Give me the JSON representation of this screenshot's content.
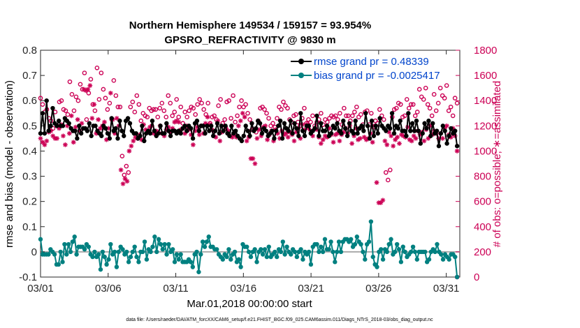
{
  "chart_data": {
    "type": "line",
    "title_line1": "Northern Hemisphere 149534 / 159157 = 93.954%",
    "title_line2": "GPSRO_REFRACTIVITY @ 9830 m",
    "xlabel": "Mar.01,2018 00:00:00 start",
    "ylabel_left": "rmse and bias (model - observation)",
    "ylabel_right": "# of obs: o=possible; ∗=assimilated",
    "x_ticks": [
      "03/01",
      "03/06",
      "03/11",
      "03/16",
      "03/21",
      "03/26",
      "03/31"
    ],
    "x_tick_days": [
      0,
      5,
      10,
      15,
      20,
      25,
      30
    ],
    "xlim": [
      0,
      31
    ],
    "ylim_left": [
      -0.1,
      0.8
    ],
    "ylim_right": [
      0,
      1800
    ],
    "y_ticks_left": [
      "-0.1",
      "0",
      "0.1",
      "0.2",
      "0.3",
      "0.4",
      "0.5",
      "0.6",
      "0.7",
      "0.8"
    ],
    "y_ticks_right": [
      "0",
      "200",
      "400",
      "600",
      "800",
      "1000",
      "1200",
      "1400",
      "1600",
      "1800"
    ],
    "colors": {
      "rmse": "#000000",
      "bias": "#008080",
      "obs": "#cc0055",
      "legend_text": "#0044cc",
      "zero_line": "#aaaaaa"
    },
    "series": [
      {
        "name": "rmse",
        "legend": "rmse grand pr = 0.48339",
        "axis": "left",
        "values": [
          0.47,
          0.55,
          0.47,
          0.6,
          0.48,
          0.5,
          0.57,
          0.51,
          0.5,
          0.52,
          0.5,
          0.5,
          0.53,
          0.52,
          0.51,
          0.49,
          0.48,
          0.48,
          0.45,
          0.5,
          0.47,
          0.49,
          0.49,
          0.48,
          0.51,
          0.46,
          0.5,
          0.5,
          0.48,
          0.47,
          0.46,
          0.5,
          0.49,
          0.47,
          0.45,
          0.53,
          0.48,
          0.49,
          0.45,
          0.52,
          0.48,
          0.46,
          0.52,
          0.53,
          0.51,
          0.48,
          0.47,
          0.47,
          0.45,
          0.46,
          0.5,
          0.44,
          0.47,
          0.48,
          0.47,
          0.52,
          0.48,
          0.46,
          0.47,
          0.5,
          0.47,
          0.47,
          0.51,
          0.48,
          0.46,
          0.48,
          0.48,
          0.47,
          0.48,
          0.47,
          0.49,
          0.5,
          0.48,
          0.5,
          0.49,
          0.45,
          0.51,
          0.52,
          0.48,
          0.5,
          0.5,
          0.47,
          0.5,
          0.48,
          0.5,
          0.46,
          0.48,
          0.51,
          0.47,
          0.5,
          0.48,
          0.5,
          0.47,
          0.46,
          0.5,
          0.47,
          0.48,
          0.46,
          0.45,
          0.44,
          0.46,
          0.5,
          0.48,
          0.46,
          0.51,
          0.48,
          0.49,
          0.52,
          0.51,
          0.47,
          0.49,
          0.48,
          0.46,
          0.47,
          0.48,
          0.45,
          0.48,
          0.5,
          0.52,
          0.45,
          0.51,
          0.49,
          0.48,
          0.52,
          0.47,
          0.51,
          0.49,
          0.46,
          0.55,
          0.48,
          0.46,
          0.5,
          0.5,
          0.47,
          0.48,
          0.49,
          0.54,
          0.46,
          0.51,
          0.48,
          0.48,
          0.5,
          0.46,
          0.47,
          0.5,
          0.49,
          0.51,
          0.48,
          0.47,
          0.52,
          0.49,
          0.46,
          0.51,
          0.48,
          0.47,
          0.52,
          0.47,
          0.49,
          0.5,
          0.48,
          0.55,
          0.5,
          0.45,
          0.52,
          0.46,
          0.5,
          0.47,
          0.53,
          0.5,
          0.49,
          0.48,
          0.5,
          0.49,
          0.55,
          0.47,
          0.5,
          0.49,
          0.52,
          0.48,
          0.48,
          0.46,
          0.55,
          0.48,
          0.51,
          0.48,
          0.52,
          0.48,
          0.43,
          0.47,
          0.51,
          0.49,
          0.52,
          0.46,
          0.51,
          0.47,
          0.48,
          0.42,
          0.47,
          0.5,
          0.48,
          0.43,
          0.46,
          0.49,
          0.47,
          0.48,
          0.42
        ]
      },
      {
        "name": "bias",
        "legend": "bias grand pr = -0.0025417",
        "axis": "left",
        "values": [
          0.05,
          -0.01,
          -0.01,
          -0.01,
          -0.01,
          0.01,
          0.0,
          -0.01,
          -0.05,
          -0.05,
          0.0,
          -0.04,
          0.03,
          -0.01,
          0.03,
          0.0,
          0.04,
          0.06,
          -0.01,
          0.02,
          0.02,
          0.02,
          0.01,
          0.03,
          0.02,
          -0.01,
          -0.02,
          0.0,
          -0.02,
          -0.01,
          -0.07,
          0.0,
          -0.02,
          -0.05,
          -0.03,
          0.03,
          -0.01,
          0.0,
          -0.06,
          0.0,
          0.02,
          0.01,
          -0.01,
          0.0,
          -0.04,
          -0.02,
          0.0,
          0.02,
          -0.02,
          -0.04,
          0.0,
          0.0,
          0.04,
          -0.03,
          0.01,
          0.0,
          0.02,
          0.06,
          0.0,
          0.05,
          0.03,
          0.01,
          0.03,
          -0.01,
          0.03,
          0.0,
          0.01,
          -0.04,
          -0.01,
          -0.03,
          -0.01,
          -0.04,
          -0.04,
          -0.04,
          -0.03,
          -0.04,
          -0.06,
          -0.01,
          0.0,
          -0.08,
          -0.01,
          0.04,
          0.02,
          0.04,
          0.06,
          0.02,
          0.02,
          0.01,
          0.01,
          -0.01,
          -0.02,
          -0.03,
          -0.01,
          -0.02,
          0.01,
          -0.03,
          -0.01,
          0.0,
          -0.04,
          -0.03,
          -0.06,
          0.03,
          0.02,
          0.02,
          0.0,
          -0.02,
          0.0,
          0.01,
          -0.04,
          0.0,
          0.01,
          -0.01,
          0.01,
          -0.02,
          0.02,
          -0.02,
          -0.01,
          0.0,
          -0.02,
          0.01,
          0.0,
          0.04,
          -0.01,
          0.02,
          0.0,
          -0.01,
          0.01,
          0.0,
          -0.02,
          0.0,
          0.01,
          -0.03,
          0.0,
          -0.01,
          0.0,
          -0.05,
          0.02,
          0.03,
          0.03,
          0.0,
          0.02,
          0.0,
          0.05,
          0.01,
          0.01,
          0.04,
          0.0,
          -0.04,
          0.0,
          0.04,
          0.0,
          0.04,
          0.05,
          0.05,
          0.04,
          0.05,
          0.02,
          0.03,
          0.06,
          0.04,
          0.03,
          0.0,
          -0.03,
          0.03,
          0.04,
          0.12,
          -0.02,
          -0.05,
          -0.06,
          0.0,
          0.01,
          -0.03,
          0.01,
          0.0,
          0.03,
          0.05,
          -0.01,
          0.0,
          0.03,
          0.01,
          -0.04,
          0.02,
          0.0,
          -0.02,
          -0.01,
          0.0,
          0.02,
          0.0,
          -0.03,
          0.0,
          0.0,
          0.0,
          0.0,
          -0.04,
          -0.03,
          0.0,
          0.01,
          0.0,
          0.03,
          0.0,
          -0.01,
          -0.03,
          -0.01,
          -0.02,
          -0.03,
          -0.01,
          -0.01,
          -0.02,
          -0.1
        ]
      },
      {
        "name": "possible",
        "marker": "o",
        "axis": "right",
        "values": [
          1420,
          1370,
          1310,
          1330,
          1260,
          1240,
          1180,
          1310,
          1200,
          1390,
          1400,
          1330,
          1320,
          1290,
          1550,
          1450,
          1320,
          1430,
          1400,
          1530,
          1490,
          1620,
          1250,
          1460,
          1570,
          1370,
          1320,
          1660,
          1410,
          1620,
          1490,
          1420,
          1330,
          1380,
          1250,
          1560,
          1440,
          1350,
          1350,
          960,
          810,
          880,
          830,
          1350,
          1390,
          1310,
          1440,
          1370,
          1240,
          1300,
          1280,
          1270,
          1340,
          1320,
          1330,
          1330,
          1270,
          1340,
          1380,
          1320,
          1270,
          1440,
          1380,
          1280,
          1310,
          1410,
          1270,
          1350,
          1220,
          1310,
          1270,
          1320,
          1350,
          1340,
          1290,
          1370,
          1410,
          1380,
          1330,
          1290,
          1380,
          1220,
          1270,
          1280,
          1250,
          1360,
          1410,
          1220,
          1250,
          1390,
          1400,
          1260,
          1440,
          1230,
          1280,
          1350,
          1400,
          1350,
          1370,
          1300,
          1250,
          1170,
          1170,
          1150,
          1240,
          1340,
          1350,
          1330,
          1300,
          1260,
          1200,
          1220,
          1190,
          1260,
          1350,
          1330,
          1390,
          1360,
          1340,
          1250,
          1230,
          1280,
          1290,
          1230,
          1200,
          1260,
          1340,
          1220,
          1250,
          1230,
          1280,
          1200,
          1230,
          1250,
          1300,
          1210,
          1250,
          1230,
          1260,
          1280,
          1270,
          1280,
          1250,
          1300,
          1210,
          1340,
          1280,
          1280,
          1240,
          1280,
          1310,
          1350,
          1270,
          1290,
          1210,
          1310,
          1320,
          1210,
          1300,
          1190,
          1240,
          1220,
          1330,
          1280,
          1250,
          830,
          770,
          850,
          1270,
          1330,
          1340,
          1380,
          1370,
          1270,
          1280,
          1410,
          1340,
          1370,
          1370,
          1280,
          1310,
          1490,
          1430,
          1410,
          1500,
          1370,
          1340,
          1280,
          1450,
          1320,
          1380,
          1500,
          1440,
          1420,
          1520,
          1320,
          1350,
          1280,
          1420,
          1380
        ]
      },
      {
        "name": "assimilated",
        "marker": "*",
        "axis": "right",
        "values": [
          1100,
          1070,
          1050,
          1080,
          1150,
          1160,
          1120,
          1100,
          1100,
          1180,
          1210,
          1120,
          1050,
          1200,
          1140,
          1280,
          1070,
          1190,
          1250,
          1160,
          1220,
          1490,
          1480,
          1490,
          1520,
          1260,
          1370,
          1140,
          1250,
          1180,
          1200,
          1230,
          1090,
          1180,
          1460,
          1250,
          1140,
          1260,
          1200,
          850,
          740,
          780,
          760,
          1000,
          1040,
          1080,
          1110,
          1100,
          1130,
          1090,
          1210,
          1170,
          1150,
          1190,
          1200,
          1140,
          1160,
          1150,
          1200,
          1140,
          1120,
          1170,
          1190,
          1150,
          1180,
          1230,
          1240,
          1230,
          1170,
          1180,
          1140,
          1200,
          1170,
          1130,
          1050,
          1160,
          1190,
          1130,
          1200,
          1140,
          1220,
          1270,
          1210,
          1170,
          1160,
          1110,
          1240,
          1080,
          1150,
          1200,
          1180,
          1160,
          1120,
          1110,
          1130,
          1110,
          1200,
          1240,
          1300,
          1270,
          1080,
          1110,
          940,
          940,
          900,
          1100,
          1170,
          1120,
          1190,
          1200,
          1090,
          1130,
          1160,
          1080,
          1170,
          1140,
          1100,
          1160,
          1130,
          1140,
          1110,
          1150,
          1130,
          1080,
          1150,
          1180,
          1100,
          1210,
          1170,
          1210,
          1180,
          1160,
          1120,
          1180,
          1170,
          1110,
          1060,
          1090,
          1120,
          1110,
          1180,
          1130,
          1070,
          1130,
          1140,
          1080,
          1130,
          1150,
          1180,
          1140,
          1200,
          1060,
          1120,
          1180,
          1090,
          1100,
          1190,
          1110,
          1090,
          1100,
          1140,
          1070,
          1200,
          750,
          590,
          590,
          610,
          1080,
          1050,
          1150,
          1120,
          1040,
          1090,
          1110,
          1060,
          1130,
          1120,
          1110,
          1190,
          1090,
          1080,
          1120,
          1100,
          1160,
          1130,
          1150,
          1080,
          1170,
          1100,
          1200,
          1130,
          1160,
          1140,
          1100,
          1140,
          1100,
          1180,
          1200,
          1130,
          1110,
          1180,
          1120,
          1000
        ]
      }
    ],
    "extra_points": [
      {
        "day": 30.8,
        "value": 0,
        "marker": "o",
        "axis": "right"
      }
    ],
    "footer": "data file: /Users/raeder/DAI/ATM_forcXX/CAM6_setup/f.e21.FHIST_BGC.f09_025.CAM6assim.011/Diags_NTrS_2018-03/obs_diag_output.nc"
  }
}
